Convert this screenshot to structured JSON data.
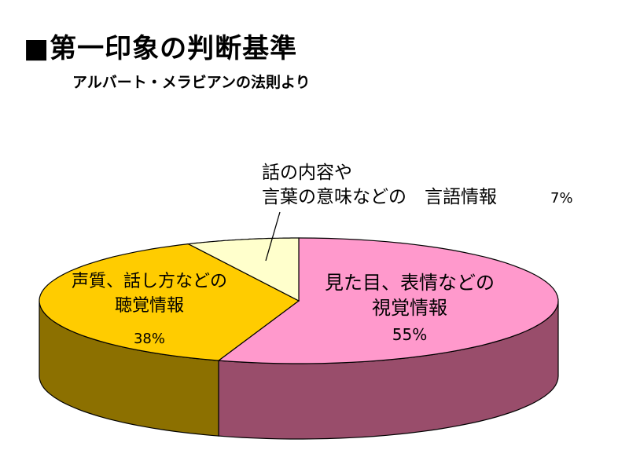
{
  "title": "■第一印象の判断基準",
  "subtitle": "アルバート・メラビアンの法則より",
  "chart_data": {
    "type": "pie",
    "style": "3d",
    "slices": [
      {
        "lines": [
          "見た目、表情などの",
          "視覚情報"
        ],
        "pct_text": "55%",
        "value": 55,
        "color": "#ff99cc",
        "side_color": "#994d6b"
      },
      {
        "lines": [
          "声質、話し方などの",
          "聴覚情報"
        ],
        "pct_text": "38%",
        "value": 38,
        "color": "#ffcc00",
        "side_color": "#8c7000"
      },
      {
        "lines": [
          "話の内容や",
          "言葉の意味などの　言語情報"
        ],
        "pct_text": "7%",
        "value": 7,
        "color": "#ffffcc",
        "side_color": "#8c8c66"
      }
    ]
  }
}
